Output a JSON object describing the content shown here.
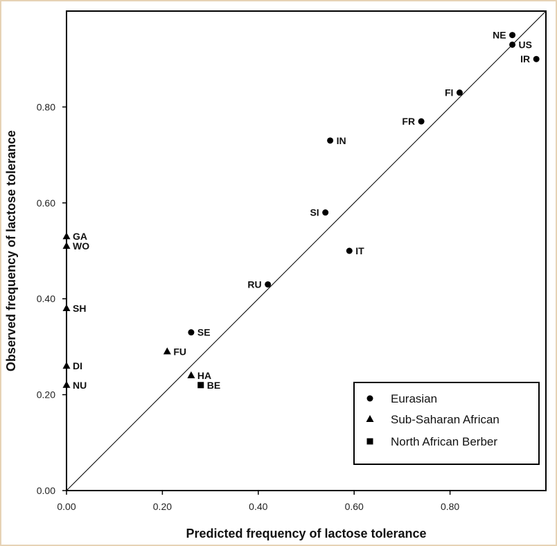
{
  "chart_data": {
    "type": "scatter",
    "xlabel": "Predicted frequency of lactose tolerance",
    "ylabel": "Observed frequency of lactose tolerance",
    "xlim": [
      0,
      1
    ],
    "ylim": [
      0,
      1
    ],
    "x_ticks": [
      "0.00",
      "0.20",
      "0.40",
      "0.60",
      "0.80"
    ],
    "y_ticks": [
      "0.00",
      "0.20",
      "0.40",
      "0.60",
      "0.80"
    ],
    "x_tick_values": [
      0,
      0.2,
      0.4,
      0.6,
      0.8
    ],
    "y_tick_values": [
      0,
      0.2,
      0.4,
      0.6,
      0.8
    ],
    "reference_line": "y = x",
    "grid": false,
    "legend_position": "bottom-right",
    "series": [
      {
        "name": "Eurasian",
        "marker": "circle",
        "points": [
          {
            "label": "NE",
            "x": 0.93,
            "y": 0.95
          },
          {
            "label": "US",
            "x": 0.93,
            "y": 0.93
          },
          {
            "label": "IR",
            "x": 0.98,
            "y": 0.9
          },
          {
            "label": "FI",
            "x": 0.82,
            "y": 0.83
          },
          {
            "label": "FR",
            "x": 0.74,
            "y": 0.77
          },
          {
            "label": "IN",
            "x": 0.55,
            "y": 0.73
          },
          {
            "label": "SI",
            "x": 0.54,
            "y": 0.58
          },
          {
            "label": "IT",
            "x": 0.59,
            "y": 0.5
          },
          {
            "label": "RU",
            "x": 0.42,
            "y": 0.43
          },
          {
            "label": "SE",
            "x": 0.26,
            "y": 0.33
          }
        ]
      },
      {
        "name": "Sub-Saharan African",
        "marker": "triangle",
        "points": [
          {
            "label": "GA",
            "x": 0.0,
            "y": 0.53
          },
          {
            "label": "WO",
            "x": 0.0,
            "y": 0.51
          },
          {
            "label": "SH",
            "x": 0.0,
            "y": 0.38
          },
          {
            "label": "DI",
            "x": 0.0,
            "y": 0.26
          },
          {
            "label": "NU",
            "x": 0.0,
            "y": 0.22
          },
          {
            "label": "FU",
            "x": 0.21,
            "y": 0.29
          },
          {
            "label": "HA",
            "x": 0.26,
            "y": 0.24
          }
        ]
      },
      {
        "name": "North African Berber",
        "marker": "square",
        "points": [
          {
            "label": "BE",
            "x": 0.28,
            "y": 0.22
          }
        ]
      }
    ]
  }
}
